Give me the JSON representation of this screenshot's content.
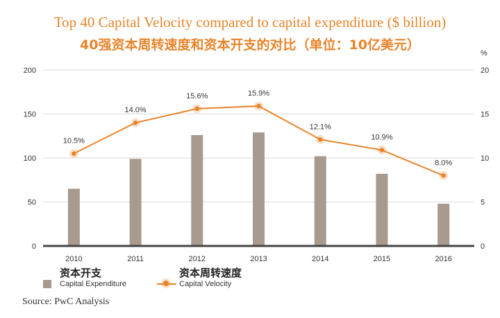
{
  "chart_data": {
    "type": "bar",
    "title": "Top 40 Capital Velocity compared to capital expenditure ($ billion)",
    "subtitle": "40强资本周转速度和资本开支的对比（单位：10亿美元）",
    "categories": [
      "2010",
      "2011",
      "2012",
      "2013",
      "2014",
      "2015",
      "2016"
    ],
    "series": [
      {
        "name": "Capital Expenditure",
        "name_cn": "资本开支",
        "type": "bar",
        "axis": "left",
        "values": [
          65,
          99,
          126,
          129,
          102,
          82,
          48
        ],
        "color": "#a89a8e"
      },
      {
        "name": "Capital Velocity",
        "name_cn": "资本周转速度",
        "type": "line",
        "axis": "right",
        "values": [
          10.5,
          14.0,
          15.6,
          15.9,
          12.1,
          10.9,
          8.0
        ],
        "labels": [
          "10.5%",
          "14.0%",
          "15.6%",
          "15.9%",
          "12.1%",
          "10.9%",
          "8.0%"
        ],
        "color": "#e8842a"
      }
    ],
    "ylim_left": [
      0,
      200
    ],
    "yticks_left": [
      "0",
      "50",
      "100",
      "150",
      "200"
    ],
    "ylim_right": [
      0,
      20
    ],
    "yticks_right": [
      "0",
      "5",
      "10",
      "15",
      "20"
    ],
    "right_unit": "%",
    "grid": true,
    "legend_position": "bottom-left"
  },
  "legend": {
    "bar_cn": "资本开支",
    "bar_en": "Capital Expenditure",
    "line_cn": "资本周转速度",
    "line_en": "Capital Velocity"
  },
  "source": "Source: PwC Analysis"
}
